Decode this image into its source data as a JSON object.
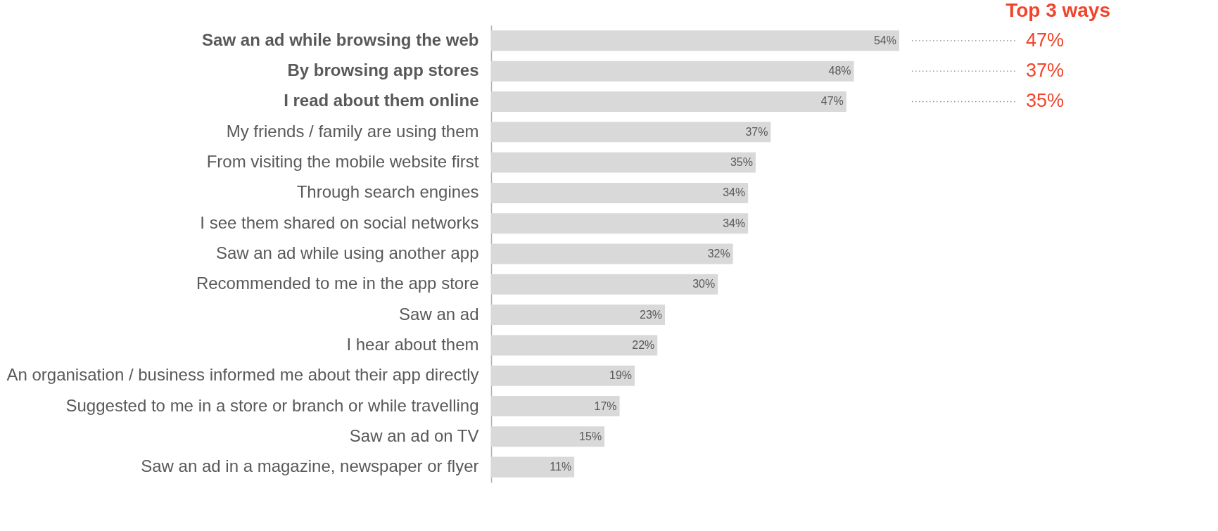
{
  "chart_data": {
    "type": "bar",
    "orientation": "horizontal",
    "grid": false,
    "tick_labels": "y",
    "color": "#d9d9d9",
    "value_labels": [
      "54%",
      "48%",
      "47%",
      "37%",
      "35%",
      "34%",
      "34%",
      "32%",
      "30%",
      "23%",
      "22%",
      "19%",
      "17%",
      "15%",
      "11%"
    ],
    "categories": [
      "Saw an ad while browsing the web",
      "By browsing app stores",
      "I read about them online",
      "My friends / family are using them",
      "From visiting the mobile website first",
      "Through search engines",
      "I see them shared on social networks",
      "Saw an ad while using another app",
      "Recommended to me in the app store",
      "Saw an ad",
      "I hear about them",
      "An organisation / business informed me about their app directly",
      "Suggested to me in a store or branch or while travelling",
      "Saw an ad on TV",
      "Saw an ad in a magazine, newspaper or flyer"
    ],
    "values": [
      54,
      48,
      47,
      37,
      35,
      34,
      34,
      32,
      30,
      23,
      22,
      19,
      17,
      15,
      11
    ],
    "annotations": [
      "Top 3 ways",
      "47%",
      "37%",
      "35%"
    ]
  }
}
